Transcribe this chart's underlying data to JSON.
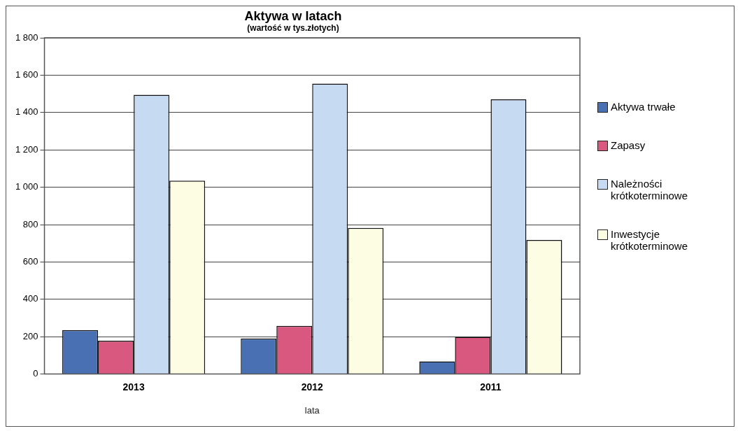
{
  "chart_data": {
    "type": "bar",
    "title": "Aktywa w latach",
    "subtitle": "(wartość w tys.złotych)",
    "xlabel": "lata",
    "categories": [
      "2013",
      "2012",
      "2011"
    ],
    "series": [
      {
        "name": "Aktywa trwałe",
        "color": "#4a70b4",
        "values": [
          235,
          190,
          68
        ]
      },
      {
        "name": "Zapasy",
        "color": "#d8587f",
        "values": [
          178,
          258,
          199
        ]
      },
      {
        "name": "Należności krótkoterminowe",
        "color": "#c6daf2",
        "values": [
          1495,
          1555,
          1470
        ]
      },
      {
        "name": "Inwestycje krótkoterminowe",
        "color": "#fdfde3",
        "values": [
          1035,
          782,
          718
        ]
      }
    ],
    "ylim": [
      0,
      1800
    ],
    "yticks": [
      {
        "value": 0,
        "label": "0"
      },
      {
        "value": 200,
        "label": "200"
      },
      {
        "value": 400,
        "label": "400"
      },
      {
        "value": 600,
        "label": "600"
      },
      {
        "value": 800,
        "label": "800"
      },
      {
        "value": 1000,
        "label": "1 000"
      },
      {
        "value": 1200,
        "label": "1 200"
      },
      {
        "value": 1400,
        "label": "1 400"
      },
      {
        "value": 1600,
        "label": "1 600"
      },
      {
        "value": 1800,
        "label": "1 800"
      }
    ],
    "grid": "y",
    "legend": "right"
  }
}
